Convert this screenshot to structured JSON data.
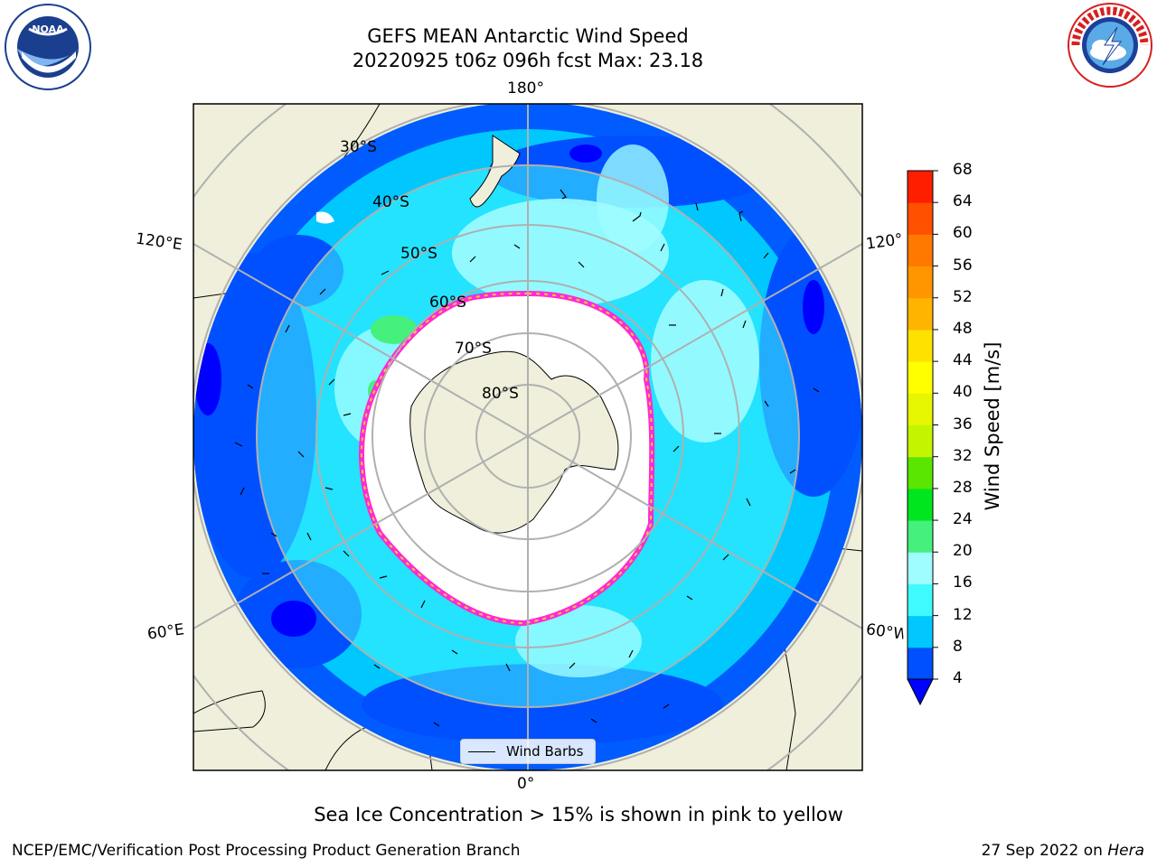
{
  "header": {
    "title_line1": "GEFS MEAN Antarctic Wind Speed",
    "title_line2": "20220925 t06z 096h fcst   Max: 23.18"
  },
  "logos": {
    "left": {
      "text": "NOAA",
      "ring_text": "NATIONAL OCEANIC AND ATMOSPHERIC ADMINISTRATION · U.S. DEPARTMENT OF COMMERCE",
      "color": "#1a3f8f"
    },
    "right": {
      "ring_text": "NATIONAL WEATHER SERVICE",
      "color": "#d81e1e"
    }
  },
  "map": {
    "projection": "south-polar-stereographic",
    "longitude_labels": {
      "top": "180°",
      "bottom": "0°",
      "upper_left": "120°E",
      "upper_right": "120°W",
      "lower_left": "60°E",
      "lower_right": "60°W"
    },
    "latitude_labels": [
      "30°S",
      "40°S",
      "50°S",
      "60°S",
      "70°S",
      "80°S"
    ],
    "legend_label": "Wind Barbs",
    "land_color": "#efefdb",
    "ocean_colors": [
      "#0050ff",
      "#00c8ff",
      "#00ffff",
      "#9ffcff",
      "#46f07d"
    ]
  },
  "colorbar": {
    "title": "Wind Speed [m/s]",
    "ticks": [
      "4",
      "8",
      "12",
      "16",
      "20",
      "24",
      "28",
      "32",
      "36",
      "40",
      "44",
      "48",
      "52",
      "56",
      "60",
      "64",
      "68"
    ],
    "colors": [
      "#0050ff",
      "#00c8ff",
      "#3ffaff",
      "#9ffcff",
      "#46f07d",
      "#00e61e",
      "#5ae600",
      "#c3f500",
      "#e6f500",
      "#ffff00",
      "#ffe100",
      "#ffb400",
      "#ff9600",
      "#ff7800",
      "#ff5000",
      "#ff1e00"
    ],
    "extend_color": "#0000ff"
  },
  "footer": {
    "ice_note": "Sea Ice Concentration > 15% is shown in pink to yellow",
    "left": "NCEP/EMC/Verification Post Processing Product Generation Branch",
    "right_date": "27 Sep 2022 on",
    "right_system": "Hera"
  }
}
